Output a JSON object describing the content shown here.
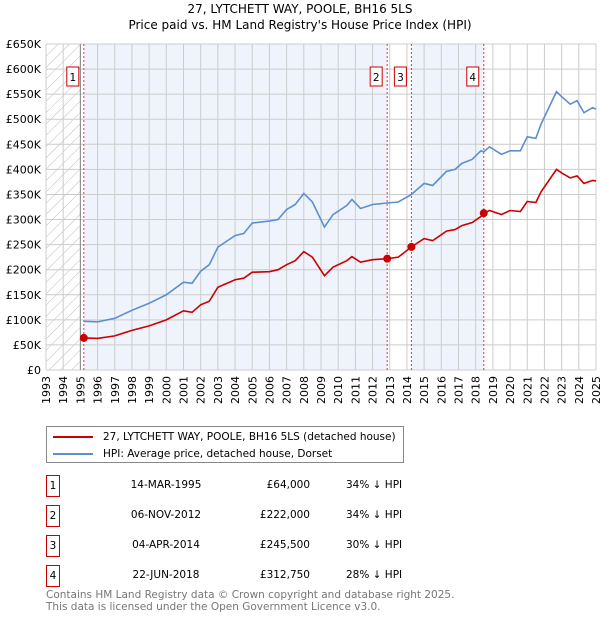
{
  "chart_data": {
    "type": "line",
    "title": "27, LYTCHETT WAY, POOLE, BH16 5LS",
    "subtitle": "Price paid vs. HM Land Registry's House Price Index (HPI)",
    "xlim": [
      1993,
      2025
    ],
    "ylim": [
      0,
      650000
    ],
    "x_ticks": [
      "1993",
      "1994",
      "1995",
      "1996",
      "1997",
      "1998",
      "1999",
      "2000",
      "2001",
      "2002",
      "2003",
      "2004",
      "2005",
      "2006",
      "2007",
      "2008",
      "2009",
      "2010",
      "2011",
      "2012",
      "2013",
      "2014",
      "2015",
      "2016",
      "2017",
      "2018",
      "2019",
      "2020",
      "2021",
      "2022",
      "2023",
      "2024",
      "2025"
    ],
    "y_ticks": [
      "£0",
      "£50K",
      "£100K",
      "£150K",
      "£200K",
      "£250K",
      "£300K",
      "£350K",
      "£400K",
      "£450K",
      "£500K",
      "£550K",
      "£600K",
      "£650K"
    ],
    "grid": true,
    "series": [
      {
        "name": "27, LYTCHETT WAY, POOLE, BH16 5LS (detached house)",
        "color": "#cc0000",
        "x": [
          1995.2,
          1996,
          1997,
          1998,
          1999,
          2000,
          2001,
          2001.5,
          2002,
          2002.5,
          2003,
          2004,
          2004.5,
          2005,
          2006,
          2006.5,
          2007,
          2007.5,
          2008,
          2008.5,
          2009.2,
          2009.7,
          2010.5,
          2010.8,
          2011.3,
          2012,
          2012.85,
          2013.5,
          2014.26,
          2015,
          2015.5,
          2016.3,
          2016.8,
          2017.2,
          2017.8,
          2018.3,
          2018.47,
          2018.8,
          2019.5,
          2020,
          2020.6,
          2021,
          2021.5,
          2021.8,
          2022.7,
          2023,
          2023.5,
          2023.9,
          2024.3,
          2024.8,
          2025
        ],
        "values": [
          64,
          63,
          68,
          79,
          88,
          100,
          118,
          115,
          130,
          137,
          165,
          180,
          183,
          195,
          196,
          200,
          210,
          218,
          236,
          225,
          188,
          205,
          218,
          226,
          215,
          220,
          222,
          225,
          245.5,
          262,
          258,
          277,
          280,
          288,
          294,
          306,
          312.75,
          318,
          310,
          318,
          316,
          336,
          334,
          355,
          400,
          393,
          383,
          387,
          372,
          378,
          377
        ]
      },
      {
        "name": "HPI: Average price, detached house, Dorset",
        "color": "#5b8fd0",
        "x": [
          1995.2,
          1996,
          1997,
          1998,
          1999,
          2000,
          2001,
          2001.5,
          2002,
          2002.5,
          2003,
          2004,
          2004.5,
          2005,
          2006,
          2006.5,
          2007,
          2007.5,
          2008,
          2008.5,
          2009.2,
          2009.7,
          2010.5,
          2010.8,
          2011.3,
          2012,
          2012.85,
          2013.5,
          2014.26,
          2015,
          2015.5,
          2016.3,
          2016.8,
          2017.2,
          2017.8,
          2018.3,
          2018.47,
          2018.8,
          2019.5,
          2020,
          2020.6,
          2021,
          2021.5,
          2021.8,
          2022.7,
          2023,
          2023.5,
          2023.9,
          2024.3,
          2024.8,
          2025
        ],
        "values": [
          97,
          96,
          103,
          119,
          133,
          150,
          175,
          173,
          197,
          210,
          245,
          268,
          272,
          293,
          297,
          300,
          320,
          330,
          352,
          335,
          285,
          310,
          328,
          340,
          322,
          330,
          333,
          335,
          350,
          372,
          368,
          396,
          400,
          412,
          420,
          437,
          435,
          445,
          430,
          437,
          437,
          465,
          462,
          490,
          555,
          545,
          530,
          537,
          513,
          523,
          520
        ]
      }
    ],
    "value_units": "thousands GBP",
    "sales": [
      {
        "id": "1",
        "x": 1995.2,
        "date": "14-MAR-1995",
        "price": "£64,000",
        "value": 64,
        "hpi": "34% ↓ HPI"
      },
      {
        "id": "2",
        "x": 2012.85,
        "date": "06-NOV-2012",
        "price": "£222,000",
        "value": 222,
        "hpi": "34% ↓ HPI"
      },
      {
        "id": "3",
        "x": 2014.26,
        "date": "04-APR-2014",
        "price": "£245,500",
        "value": 245.5,
        "hpi": "30% ↓ HPI"
      },
      {
        "id": "4",
        "x": 2018.47,
        "date": "22-JUN-2018",
        "price": "£312,750",
        "value": 312.75,
        "hpi": "28% ↓ HPI"
      }
    ]
  },
  "footer": {
    "line1": "Contains HM Land Registry data © Crown copyright and database right 2025.",
    "line2": "This data is licensed under the Open Government Licence v3.0."
  }
}
